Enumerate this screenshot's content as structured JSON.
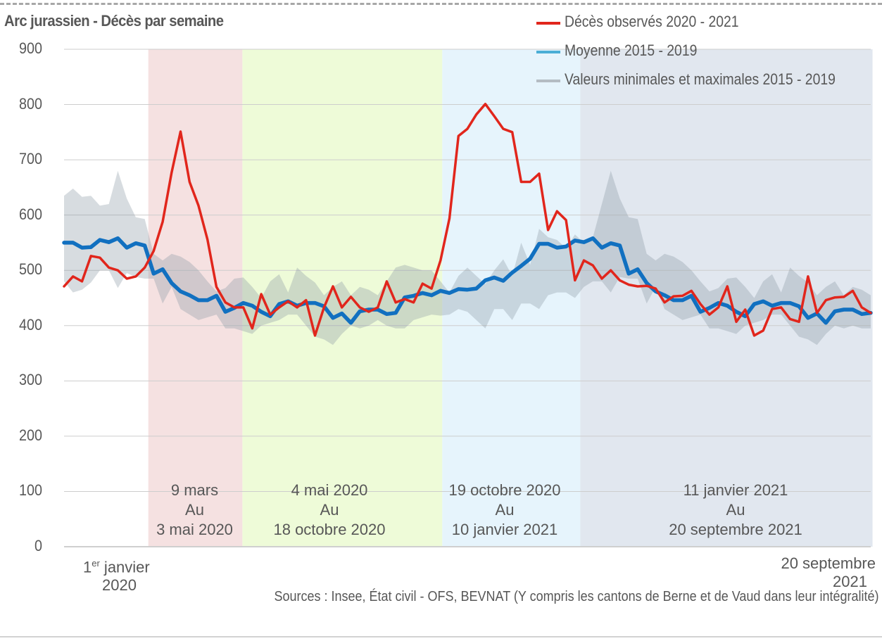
{
  "chart_data": {
    "type": "line",
    "title": "Arc jurassien - Décès par semaine",
    "xlabel": "",
    "ylabel": "",
    "ylim": [
      0,
      900
    ],
    "yticks": [
      0,
      100,
      200,
      300,
      400,
      500,
      600,
      700,
      800,
      900
    ],
    "grid": true,
    "legend_position": "top-right",
    "x_start_label": {
      "line1": "1",
      "sup": "er",
      "line1b": " janvier",
      "line2": "2020"
    },
    "x_end_label": {
      "line1": "20 septembre",
      "line2": "2021"
    },
    "x_unit": "week",
    "n_weeks": 91,
    "periods": [
      {
        "start_week": 9.4,
        "end_week": 19.9,
        "color": "#f5e1e1",
        "from": "9 mars",
        "to_word": "Au",
        "until": "3 mai 2020"
      },
      {
        "start_week": 19.9,
        "end_week": 42.2,
        "color": "#eefbd8",
        "from": "4 mai 2020",
        "to_word": "Au",
        "until": "18 octobre 2020"
      },
      {
        "start_week": 42.2,
        "end_week": 57.6,
        "color": "#e6f4fc",
        "from": "19 octobre 2020",
        "to_word": "Au",
        "until": "10 janvier 2021"
      },
      {
        "start_week": 57.6,
        "end_week": 90.2,
        "color": "#e1e7ef",
        "from": "11 janvier 2021",
        "to_word": "Au",
        "until": "20 septembre 2021"
      }
    ],
    "series": [
      {
        "name": "Décès observés 2020 - 2021",
        "color": "#e1261c",
        "kind": "line",
        "values": [
          471,
          489,
          480,
          526,
          523,
          505,
          500,
          485,
          489,
          505,
          535,
          588,
          677,
          751,
          660,
          617,
          556,
          470,
          442,
          433,
          433,
          395,
          457,
          420,
          433,
          444,
          433,
          446,
          382,
          433,
          471,
          433,
          452,
          433,
          425,
          433,
          480,
          442,
          448,
          442,
          476,
          467,
          518,
          594,
          743,
          756,
          782,
          801,
          779,
          756,
          750,
          660,
          660,
          675,
          573,
          607,
          591,
          482,
          518,
          509,
          485,
          500,
          482,
          474,
          471,
          472,
          467,
          442,
          453,
          454,
          463,
          439,
          420,
          433,
          471,
          407,
          429,
          382,
          391,
          430,
          433,
          412,
          407,
          489,
          423,
          446,
          451,
          452,
          463,
          433,
          423
        ]
      },
      {
        "name": "Moyenne 2015 - 2019",
        "color": "#1170c0",
        "kind": "line",
        "values": [
          550,
          550,
          541,
          542,
          555,
          551,
          558,
          541,
          549,
          545,
          494,
          502,
          477,
          462,
          455,
          446,
          446,
          454,
          425,
          432,
          441,
          436,
          425,
          417,
          439,
          444,
          436,
          441,
          441,
          435,
          414,
          422,
          405,
          426,
          429,
          429,
          421,
          423,
          451,
          454,
          459,
          455,
          463,
          459,
          466,
          465,
          467,
          482,
          487,
          481,
          496,
          508,
          521,
          548,
          548,
          541,
          543,
          554,
          551,
          558,
          541,
          549,
          545,
          494,
          502,
          477,
          462,
          455,
          446,
          446,
          454,
          425,
          432,
          441,
          436,
          425,
          417,
          439,
          444,
          436,
          441,
          441,
          435,
          414,
          422,
          405,
          426,
          429,
          429,
          421,
          423
        ]
      },
      {
        "name": "Valeurs minimales et maximales 2015 - 2019",
        "color": "#b4bcc3",
        "kind": "band",
        "max": [
          635,
          648,
          633,
          635,
          617,
          620,
          680,
          630,
          596,
          593,
          530,
          518,
          530,
          525,
          515,
          500,
          480,
          462,
          468,
          485,
          487,
          470,
          450,
          480,
          493,
          460,
          505,
          490,
          478,
          455,
          470,
          480,
          455,
          470,
          465,
          455,
          480,
          505,
          510,
          505,
          500,
          500,
          480,
          460,
          490,
          505,
          490,
          475,
          500,
          520,
          490,
          550,
          510,
          575,
          560,
          555,
          540,
          565,
          550,
          560,
          620,
          680,
          630,
          596,
          593,
          530,
          518,
          530,
          525,
          515,
          500,
          480,
          462,
          468,
          485,
          487,
          470,
          450,
          480,
          493,
          460,
          505,
          490,
          478,
          455,
          470,
          480,
          455,
          470,
          465,
          455
        ],
        "min": [
          480,
          460,
          465,
          478,
          500,
          500,
          468,
          495,
          488,
          485,
          485,
          440,
          470,
          430,
          420,
          410,
          415,
          420,
          395,
          395,
          390,
          385,
          400,
          405,
          410,
          420,
          420,
          400,
          380,
          375,
          365,
          385,
          400,
          395,
          400,
          410,
          400,
          395,
          395,
          410,
          415,
          420,
          418,
          420,
          430,
          425,
          410,
          395,
          430,
          430,
          410,
          440,
          440,
          430,
          455,
          460,
          460,
          450,
          470,
          480,
          480,
          460,
          488,
          485,
          485,
          440,
          470,
          430,
          420,
          410,
          415,
          420,
          395,
          395,
          390,
          385,
          400,
          405,
          410,
          420,
          420,
          400,
          380,
          375,
          365,
          385,
          400,
          395,
          400,
          395,
          395
        ]
      }
    ]
  },
  "sources": "Sources : Insee, État civil - OFS, BEVNAT (Y compris les cantons de Berne et de Vaud dans leur intégralité)"
}
